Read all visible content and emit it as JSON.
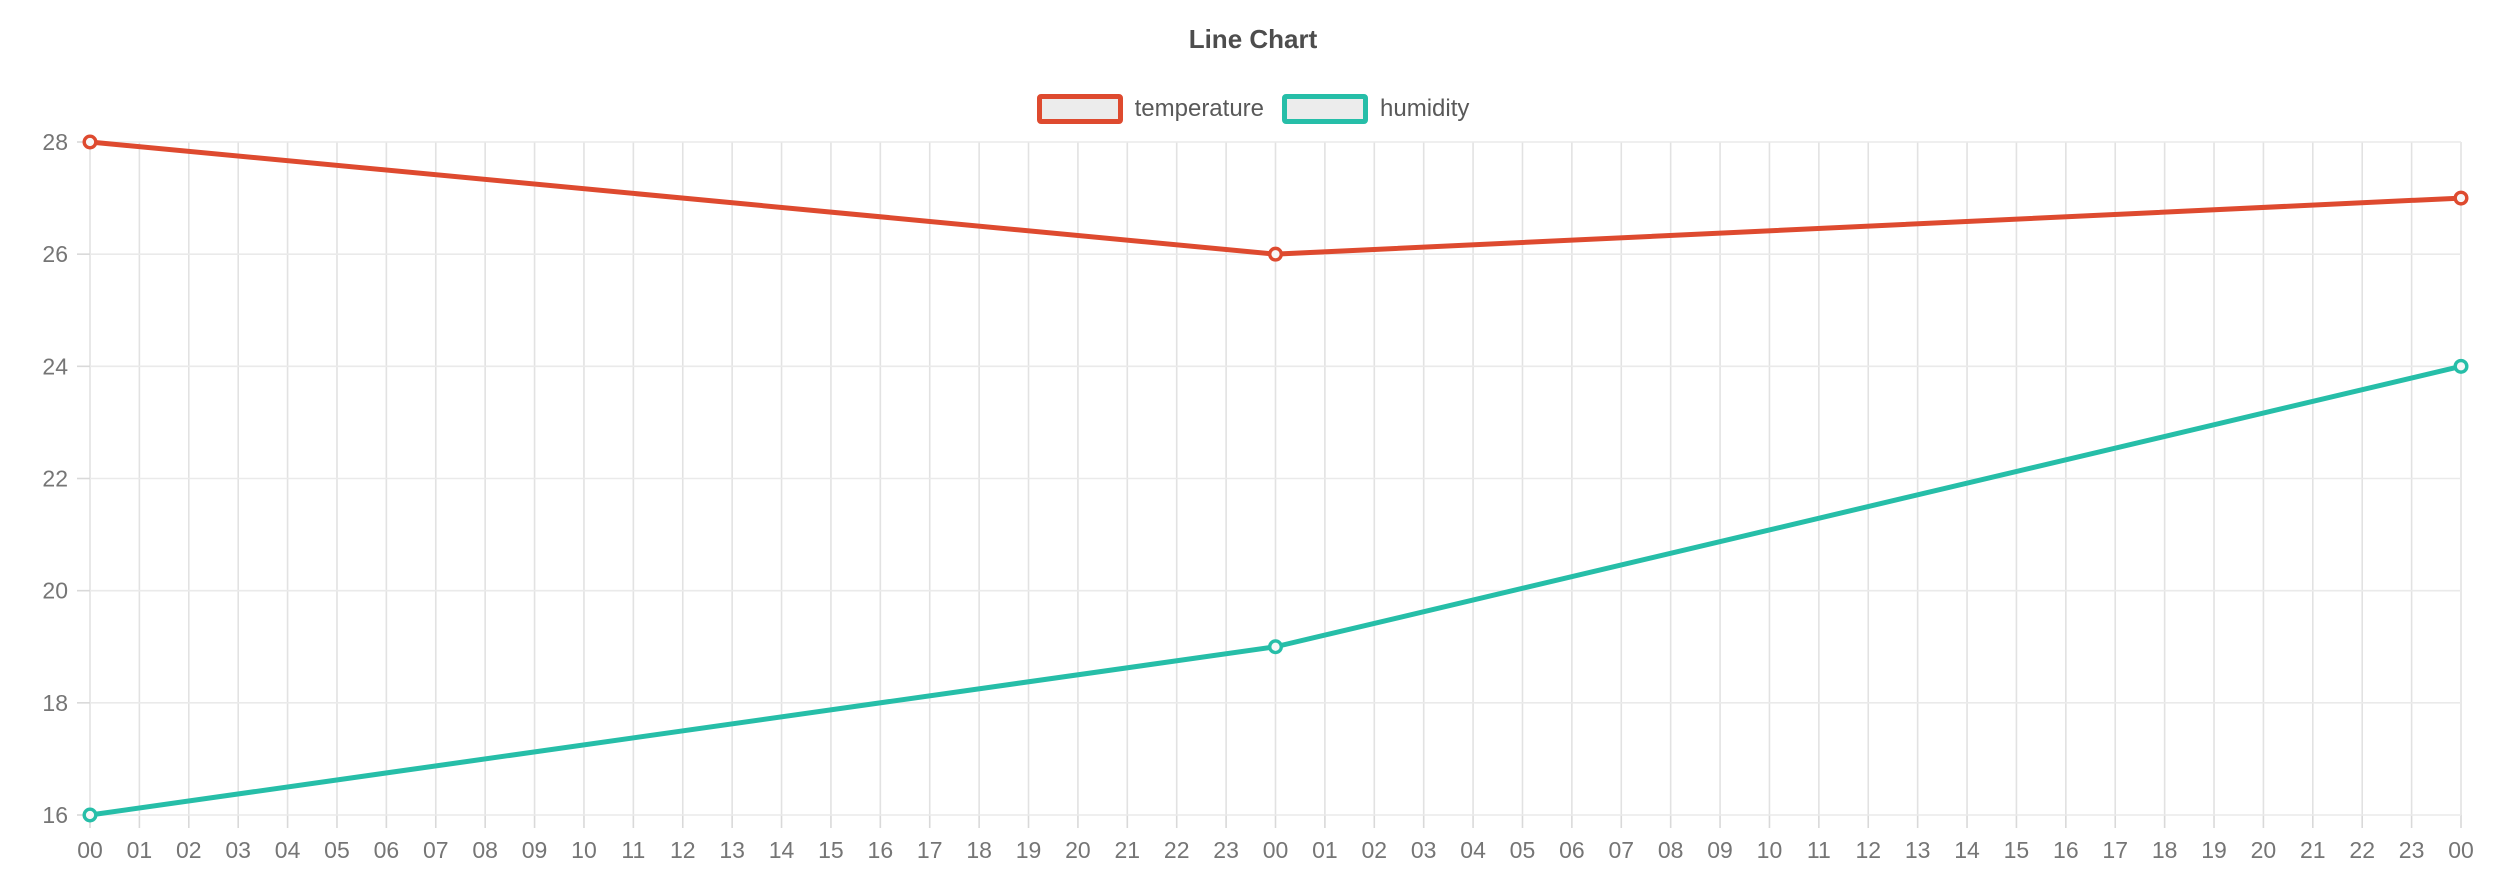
{
  "page": {
    "background": "#ffffff"
  },
  "chart_data": {
    "type": "line",
    "title": "Line Chart",
    "xlabel": "",
    "ylabel": "",
    "x_tick_labels": [
      "00",
      "01",
      "02",
      "03",
      "04",
      "05",
      "06",
      "07",
      "08",
      "09",
      "10",
      "11",
      "12",
      "13",
      "14",
      "15",
      "16",
      "17",
      "18",
      "19",
      "20",
      "21",
      "22",
      "23",
      "00",
      "01",
      "02",
      "03",
      "04",
      "05",
      "06",
      "07",
      "08",
      "09",
      "10",
      "11",
      "12",
      "13",
      "14",
      "15",
      "16",
      "17",
      "18",
      "19",
      "20",
      "21",
      "22",
      "23",
      "00"
    ],
    "y_ticks": [
      16,
      18,
      20,
      22,
      24,
      26,
      28
    ],
    "ylim": [
      16,
      28
    ],
    "grid": true,
    "legend_position": "top-center",
    "series": [
      {
        "name": "temperature",
        "color": "#de4a2f",
        "point_indices": [
          0,
          24,
          48
        ],
        "values": [
          28,
          26,
          27
        ]
      },
      {
        "name": "humidity",
        "color": "#26bea8",
        "point_indices": [
          0,
          24,
          48
        ],
        "values": [
          16,
          19,
          24
        ]
      }
    ],
    "colors": {
      "grid_vertical": "#e2e2e2",
      "grid_horizontal": "#eaeaea",
      "tick": "#d9d9d9",
      "axis_label": "#757575",
      "title": "#4d4d4d",
      "legend_label": "#595959",
      "marker_fill": "#f7f7f7",
      "legend_marker_fill": "#ececec"
    }
  }
}
